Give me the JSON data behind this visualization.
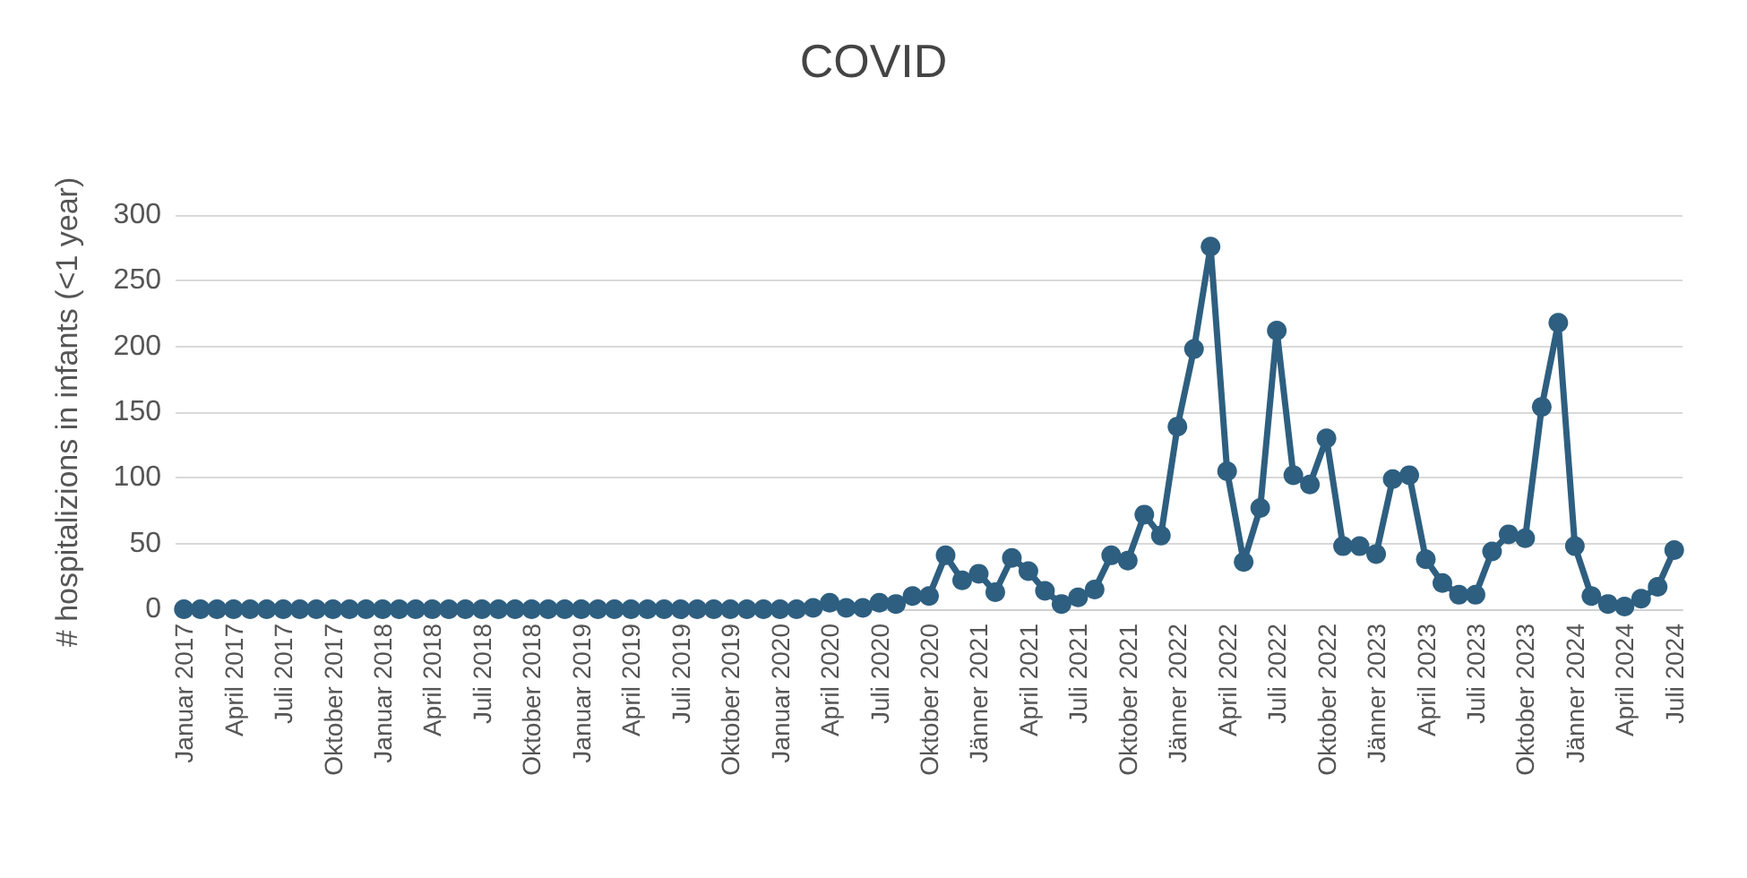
{
  "chart_data": {
    "type": "line",
    "title": "COVID",
    "ylabel": "# hospitalizions in infants (<1 year)",
    "categories": [
      "Januar 2017",
      null,
      null,
      "April 2017",
      null,
      null,
      "Juli 2017",
      null,
      null,
      "Oktober 2017",
      null,
      null,
      "Januar 2018",
      null,
      null,
      "April 2018",
      null,
      null,
      "Juli 2018",
      null,
      null,
      "Oktober 2018",
      null,
      null,
      "Januar 2019",
      null,
      null,
      "April 2019",
      null,
      null,
      "Juli 2019",
      null,
      null,
      "Oktober 2019",
      null,
      null,
      "Januar 2020",
      null,
      null,
      "April 2020",
      null,
      null,
      "Juli 2020",
      null,
      null,
      "Oktober 2020",
      null,
      null,
      "Jänner 2021",
      null,
      null,
      "April 2021",
      null,
      null,
      "Juli 2021",
      null,
      null,
      "Oktober 2021",
      null,
      null,
      "Jänner 2022",
      null,
      null,
      "April 2022",
      null,
      null,
      "Juli 2022",
      null,
      null,
      "Oktober 2022",
      null,
      null,
      "Jänner 2023",
      null,
      null,
      "April 2023",
      null,
      null,
      "Juli 2023",
      null,
      null,
      "Oktober 2023",
      null,
      null,
      "Jänner 2024",
      null,
      null,
      "April 2024",
      null,
      null,
      "Juli 2024"
    ],
    "series": [
      {
        "color": "#2e5f80",
        "values": [
          0,
          0,
          0,
          0,
          0,
          0,
          0,
          0,
          0,
          0,
          0,
          0,
          0,
          0,
          0,
          0,
          0,
          0,
          0,
          0,
          0,
          0,
          0,
          0,
          0,
          0,
          0,
          0,
          0,
          0,
          0,
          0,
          0,
          0,
          0,
          0,
          0,
          0,
          1,
          5,
          1,
          1,
          5,
          4,
          10,
          10,
          41,
          22,
          27,
          13,
          39,
          29,
          14,
          4,
          9,
          15,
          41,
          37,
          72,
          56,
          139,
          198,
          276,
          105,
          36,
          77,
          212,
          102,
          95,
          130,
          48,
          48,
          42,
          99,
          102,
          38,
          20,
          11,
          11,
          44,
          57,
          54,
          154,
          218,
          48,
          10,
          4,
          2,
          8,
          17,
          45
        ]
      }
    ],
    "ylim": [
      0,
      300
    ],
    "yticks": [
      0,
      50,
      100,
      150,
      200,
      250,
      300
    ],
    "grid": "y",
    "marker": "circle",
    "line_style": "solid"
  }
}
